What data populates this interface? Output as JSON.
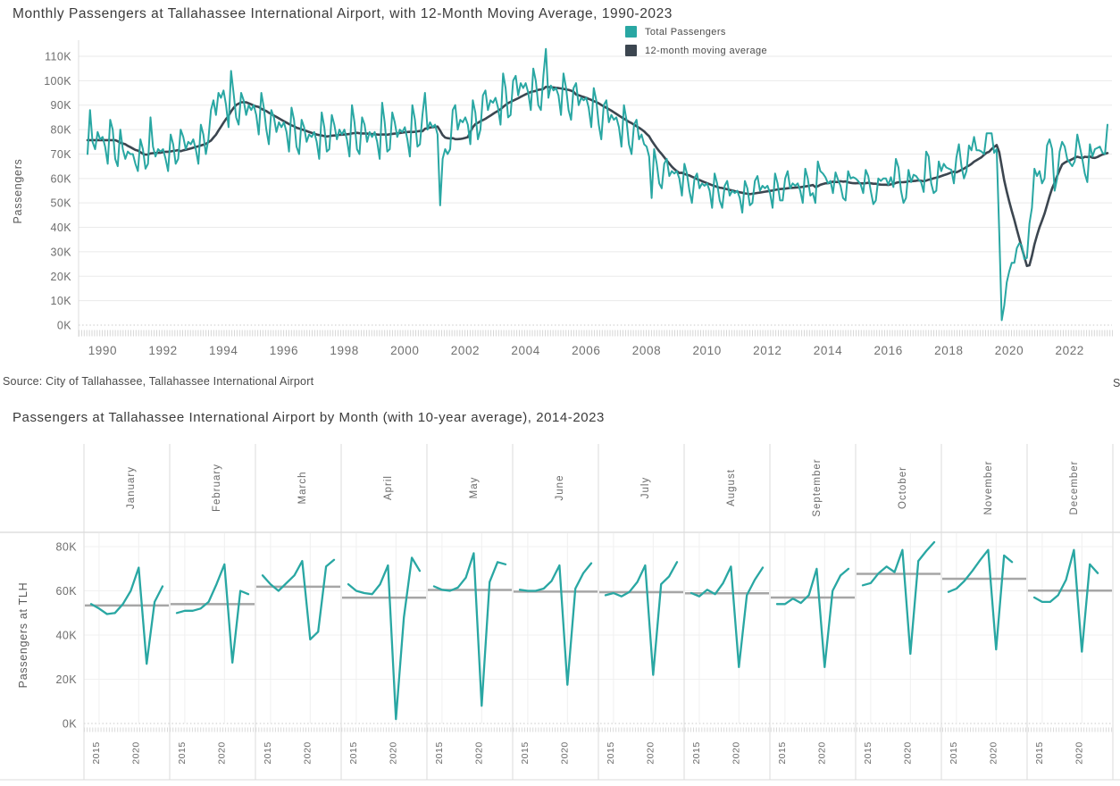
{
  "source": "Source: City of Tallahassee, Tallahassee International Airport",
  "source_partial_right": "S",
  "colors": {
    "teal": "#29a7a3",
    "dark_slate": "#3c4650",
    "average_gray": "#a6a6a6",
    "grid": "#eaeaea",
    "axis_text": "#6e6e6e"
  },
  "chart_data": [
    {
      "type": "line",
      "title": "Monthly Passengers at Tallahassee International Airport, with 12-Month Moving Average, 1990-2023",
      "ylabel": "Passengers",
      "units": "thousands of passengers",
      "frequency": "monthly",
      "start": "1990-01",
      "end": "2023-10",
      "ylim": [
        0,
        115
      ],
      "grid": "horizontal",
      "legend_position": "top-right",
      "y_tick_labels": [
        "0K",
        "10K",
        "20K",
        "30K",
        "40K",
        "50K",
        "60K",
        "70K",
        "80K",
        "90K",
        "100K",
        "110K"
      ],
      "x_tick_labels": [
        "1990",
        "1992",
        "1994",
        "1996",
        "1998",
        "2000",
        "2002",
        "2004",
        "2006",
        "2008",
        "2010",
        "2012",
        "2014",
        "2016",
        "2018",
        "2020",
        "2022"
      ],
      "series": [
        {
          "name": "Total Passengers",
          "color": "#29a7a3",
          "values_by_year": {
            "1990": [
              70,
              88,
              75,
              72,
              79,
              76,
              77,
              73,
              66,
              84,
              80,
              68
            ],
            "1991": [
              65,
              80,
              72,
              68,
              71,
              70,
              70,
              66,
              63,
              76,
              72,
              64
            ],
            "1992": [
              66,
              85,
              73,
              69,
              72,
              71,
              72,
              68,
              63,
              78,
              74,
              66
            ],
            "1993": [
              68,
              80,
              77,
              72,
              75,
              74,
              76,
              72,
              66,
              82,
              78,
              70
            ],
            "1994": [
              76,
              88,
              92,
              86,
              95,
              93,
              96,
              90,
              81,
              104,
              95,
              85
            ],
            "1995": [
              82,
              95,
              92,
              86,
              90,
              88,
              90,
              86,
              78,
              95,
              89,
              80
            ],
            "1996": [
              74,
              88,
              85,
              79,
              83,
              81,
              83,
              79,
              71,
              89,
              84,
              73
            ],
            "1997": [
              70,
              84,
              81,
              75,
              78,
              77,
              79,
              75,
              68,
              87,
              81,
              71
            ],
            "1998": [
              72,
              86,
              82,
              76,
              80,
              78,
              80,
              76,
              69,
              90,
              83,
              72
            ],
            "1999": [
              70,
              85,
              82,
              75,
              79,
              77,
              79,
              75,
              68,
              91,
              83,
              71
            ],
            "2000": [
              72,
              87,
              83,
              77,
              80,
              79,
              81,
              76,
              69,
              90,
              84,
              73
            ],
            "2001": [
              74,
              86,
              95,
              80,
              83,
              81,
              82,
              78,
              49,
              68,
              72,
              70
            ],
            "2002": [
              72,
              88,
              90,
              80,
              84,
              83,
              85,
              82,
              74,
              92,
              87,
              76
            ],
            "2003": [
              80,
              94,
              96,
              88,
              92,
              91,
              93,
              89,
              82,
              103,
              97,
              85
            ],
            "2004": [
              86,
              100,
              102,
              94,
              99,
              97,
              99,
              95,
              88,
              105,
              100,
              90
            ],
            "2005": [
              88,
              102,
              113,
              93,
              98,
              96,
              97,
              94,
              86,
              103,
              97,
              88
            ],
            "2006": [
              84,
              97,
              99,
              90,
              93,
              92,
              93,
              89,
              81,
              97,
              92,
              82
            ],
            "2007": [
              76,
              90,
              92,
              83,
              86,
              84,
              85,
              81,
              73,
              90,
              84,
              74
            ],
            "2008": [
              70,
              82,
              84,
              76,
              78,
              74,
              73,
              69,
              52,
              72,
              66,
              58
            ],
            "2009": [
              56,
              66,
              68,
              61,
              63,
              62,
              63,
              60,
              53,
              66,
              62,
              55
            ],
            "2010": [
              50,
              60,
              62,
              56,
              58,
              57,
              58,
              55,
              48,
              62,
              58,
              51
            ],
            "2011": [
              48,
              57,
              59,
              53,
              55,
              54,
              55,
              52,
              46,
              59,
              56,
              49
            ],
            "2012": [
              50,
              59,
              61,
              55,
              57,
              56,
              57,
              54,
              48,
              62,
              58,
              51
            ],
            "2013": [
              51,
              60,
              63,
              56,
              58,
              57,
              58,
              55,
              50,
              64,
              60,
              53
            ],
            "2014": [
              54,
              50,
              67,
              63,
              62,
              60.5,
              58,
              59,
              54,
              62.5,
              59.5,
              57
            ],
            "2015": [
              52,
              51,
              63,
              60,
              60.5,
              60,
              59,
              57.5,
              54,
              63.5,
              61,
              55
            ],
            "2016": [
              49.5,
              51,
              60,
              59,
              60,
              60,
              57.5,
              60.5,
              56.5,
              68,
              64.5,
              55
            ],
            "2017": [
              50,
              52,
              63.5,
              58.5,
              61.5,
              61,
              59.5,
              58.5,
              54.5,
              71,
              69,
              58
            ],
            "2018": [
              54,
              55,
              67,
              63,
              66,
              64.5,
              64,
              63.5,
              58,
              68.5,
              74,
              65
            ],
            "2019": [
              60,
              63,
              73.5,
              71.5,
              77,
              71.5,
              71.5,
              71,
              70,
              78.5,
              78.5,
              78.5
            ],
            "2020": [
              70.5,
              72,
              38,
              2,
              8,
              17.5,
              22,
              25.5,
              25.5,
              31.5,
              33.5,
              32.5
            ],
            "2021": [
              27,
              27.5,
              41.5,
              48,
              64,
              61,
              63,
              58,
              60,
              73.5,
              76,
              72
            ],
            "2022": [
              55,
              60,
              71,
              75,
              73,
              68,
              66.5,
              65,
              67,
              78,
              73,
              68
            ],
            "2023": [
              62,
              58.5,
              74,
              69,
              72,
              72.5,
              73,
              70.5,
              70,
              82
            ]
          }
        },
        {
          "name": "12-month moving average",
          "color": "#3c4650",
          "derivation": "trailing 12-month mean of Total Passengers"
        }
      ]
    },
    {
      "type": "line",
      "layout": "small-multiples-by-month",
      "title": "Passengers at Tallahassee International Airport by Month (with 10-year average),  2014-2023",
      "ylabel": "Passengers at TLH",
      "units": "thousands of passengers",
      "years_domain": [
        2014,
        2023
      ],
      "ylim": [
        0,
        85
      ],
      "average_line": "gray horizontal line = mean of that month's values",
      "y_tick_labels": [
        "0K",
        "20K",
        "40K",
        "60K",
        "80K"
      ],
      "x_tick_labels": [
        "2015",
        "2020"
      ],
      "months": [
        "January",
        "February",
        "March",
        "April",
        "May",
        "June",
        "July",
        "August",
        "September",
        "October",
        "November",
        "December"
      ],
      "values_by_month": {
        "January": [
          54,
          52,
          49.5,
          50,
          54,
          60,
          70.5,
          27,
          55,
          62
        ],
        "February": [
          50,
          51,
          51,
          52,
          55,
          63,
          72,
          27.5,
          60,
          58.5
        ],
        "March": [
          67,
          63,
          60,
          63.5,
          67,
          73.5,
          38,
          41.5,
          71,
          74
        ],
        "April": [
          63,
          60,
          59,
          58.5,
          63,
          71.5,
          2,
          48,
          75,
          69
        ],
        "May": [
          62,
          60.5,
          60,
          61.5,
          66,
          77,
          8,
          64,
          73,
          72
        ],
        "June": [
          60.5,
          60,
          60,
          61,
          64.5,
          71.5,
          17.5,
          61,
          68,
          72.5
        ],
        "July": [
          58,
          59,
          57.5,
          59.5,
          64,
          71.5,
          22,
          63,
          66.5,
          73
        ],
        "August": [
          59,
          57.5,
          60.5,
          58.5,
          63.5,
          71,
          25.5,
          58,
          65,
          70.5
        ],
        "September": [
          54,
          54,
          56.5,
          54.5,
          58,
          70,
          25.5,
          60,
          67,
          70
        ],
        "October": [
          62.5,
          63.5,
          68,
          71,
          68.5,
          78.5,
          31.5,
          73.5,
          78,
          82
        ],
        "November": [
          59.5,
          61,
          64.5,
          69,
          74,
          78.5,
          33.5,
          76,
          73
        ],
        "December": [
          57,
          55,
          55,
          58,
          65,
          78.5,
          32.5,
          72,
          68
        ]
      }
    }
  ]
}
